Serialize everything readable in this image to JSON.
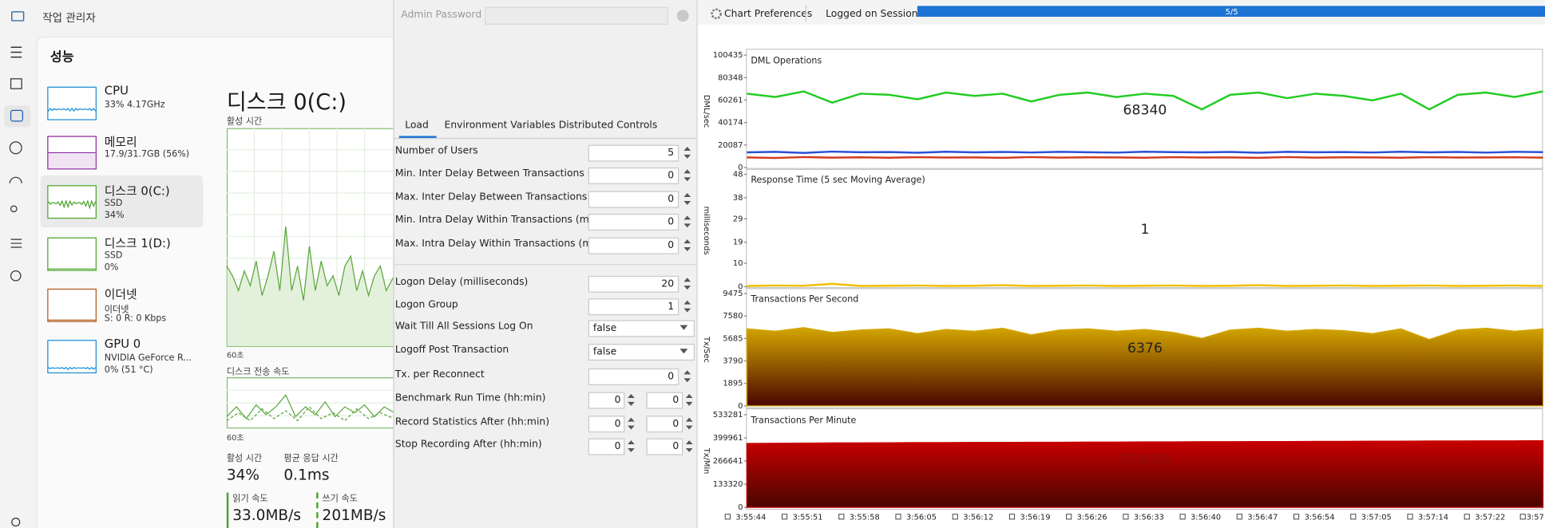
{
  "task_manager": {
    "title": "작업 관리자",
    "section": "성능",
    "devices": [
      {
        "name": "CPU",
        "lines": [
          "33% 4.17GHz"
        ]
      },
      {
        "name": "메모리",
        "lines": [
          "17.9/31.7GB (56%)"
        ]
      },
      {
        "name": "디스크 0(C:)",
        "lines": [
          "SSD",
          "34%"
        ]
      },
      {
        "name": "디스크 1(D:)",
        "lines": [
          "SSD",
          "0%"
        ]
      },
      {
        "name": "이더넷",
        "lines": [
          "이더넷",
          "S: 0 R: 0 Kbps"
        ]
      },
      {
        "name": "GPU 0",
        "lines": [
          "NVIDIA GeForce R...",
          "0% (51 °C)"
        ]
      }
    ],
    "detail": {
      "title": "디스크 0(C:)",
      "graph_label": "활성 시간",
      "graph_span": "60초",
      "transfer_label": "디스크 전송 속도",
      "transfer_span": "60초",
      "stats": [
        {
          "label": "활성 시간",
          "value": "34%"
        },
        {
          "label": "평균 응답 시간",
          "value": "0.1ms"
        },
        {
          "label": "읽기 속도",
          "value": "33.0MB/s"
        },
        {
          "label": "쓰기 속도",
          "value": "201MB/s"
        }
      ]
    }
  },
  "settings": {
    "admin_password": "Admin Password",
    "tabs": [
      "Load",
      "Environment Variables",
      "Distributed Controls"
    ],
    "fields": [
      {
        "label": "Number of Users",
        "value": 5
      },
      {
        "label": "Min. Inter Delay Between Transactions (ms)",
        "value": 0
      },
      {
        "label": "Max. Inter Delay Between Transactions (ms)",
        "value": 0
      },
      {
        "label": "Min. Intra Delay Within Transactions (ms)",
        "value": 0
      },
      {
        "label": "Max. Intra Delay Within Transactions (ms)",
        "value": 0
      },
      {
        "label": "Logon Delay (milliseconds)",
        "value": 20
      },
      {
        "label": "Logon Group",
        "value": 1
      },
      {
        "label": "Wait Till All Sessions Log On",
        "value": "false"
      },
      {
        "label": "Logoff Post Transaction",
        "value": "false"
      },
      {
        "label": "Tx. per Reconnect",
        "value": 0
      },
      {
        "label": "Benchmark Run Time (hh:min)",
        "values": [
          0,
          0
        ]
      },
      {
        "label": "Record Statistics After (hh:min)",
        "values": [
          0,
          0
        ]
      },
      {
        "label": "Stop Recording After (hh:min)",
        "values": [
          0,
          0
        ]
      }
    ]
  },
  "monitor": {
    "chart_preferences": "Chart Preferences",
    "sessions_label": "Logged on Sessions",
    "sessions_progress": "5/5"
  },
  "chart_data": [
    {
      "type": "line",
      "title": "DML Operations",
      "ylabel": "DML/sec",
      "annotation": 68340,
      "ylim": [
        0,
        100435
      ],
      "yticks": [
        0,
        20087,
        40174,
        60261,
        80348,
        100435
      ],
      "series": [
        {
          "color": "#22cc22",
          "values": [
            66000,
            63000,
            68000,
            58000,
            66000,
            65000,
            61000,
            67000,
            64000,
            66000,
            59000,
            65000,
            67000,
            63000,
            66000,
            64000,
            52000,
            65000,
            67000,
            62000,
            66000,
            64000,
            60000,
            66000,
            52000,
            65000,
            67000,
            63000,
            68000
          ]
        },
        {
          "color": "#2b4fd6",
          "values": [
            13500,
            14000,
            13000,
            14200,
            13600,
            13800,
            13200,
            14100,
            13500,
            13900,
            13400,
            14000,
            13600,
            13300,
            14100,
            13700,
            13500,
            13900,
            13200,
            14000,
            13600,
            13800,
            13400,
            14100,
            13500,
            13900,
            13300,
            14000,
            13700
          ]
        },
        {
          "color": "#d23a1e",
          "values": [
            9000,
            8500,
            9300,
            8800,
            9100,
            8700,
            9200,
            8900,
            9000,
            8600,
            9300,
            8800,
            9100,
            9000,
            8700,
            9200,
            8900,
            9000,
            8600,
            9300,
            8800,
            9100,
            9000,
            8700,
            9200,
            8900,
            9000,
            9100,
            8800
          ]
        }
      ]
    },
    {
      "type": "line",
      "title": "Response Time (5 sec Moving Average)",
      "ylabel": "milliseconds",
      "annotation": 1,
      "ylim": [
        0,
        48
      ],
      "yticks": [
        0,
        10,
        19,
        29,
        38,
        48
      ],
      "series": [
        {
          "color": "#f0c000",
          "values": [
            0.3,
            0.5,
            0.4,
            1.2,
            0.3,
            0.4,
            0.5,
            0.3,
            0.4,
            0.6,
            0.3,
            0.4,
            0.5,
            0.3,
            0.4,
            0.5,
            0.3,
            0.4,
            0.6,
            0.3,
            0.4,
            0.5,
            0.3,
            0.4,
            0.5,
            0.3,
            0.4,
            0.5,
            0.3
          ]
        }
      ]
    },
    {
      "type": "area",
      "title": "Transactions Per Second",
      "ylabel": "Tx/Sec",
      "annotation": 6376,
      "ylim": [
        0,
        9475
      ],
      "yticks": [
        0,
        1895,
        3790,
        5685,
        7580,
        9475
      ],
      "series": [
        {
          "color": "#d4a600",
          "values": [
            6500,
            6300,
            6600,
            6200,
            6400,
            6500,
            6100,
            6450,
            6300,
            6550,
            6000,
            6400,
            6500,
            6300,
            6450,
            6200,
            5700,
            6400,
            6550,
            6300,
            6450,
            6350,
            6100,
            6500,
            5600,
            6400,
            6550,
            6300,
            6500
          ]
        }
      ]
    },
    {
      "type": "area",
      "title": "Transactions Per Minute",
      "ylabel": "Tx/Min",
      "annotation": 374600,
      "ylim": [
        0,
        533281
      ],
      "yticks": [
        0,
        133320,
        266641,
        399961,
        533281
      ],
      "categories": [
        "3:55:44",
        null,
        "3:55:51",
        null,
        "3:55:58",
        null,
        "3:56:05",
        null,
        "3:56:12",
        null,
        "3:56:19",
        null,
        "3:56:26",
        null,
        "3:56:33",
        null,
        "3:56:40",
        null,
        "3:56:47",
        null,
        "3:56:54",
        null,
        "3:57:05",
        null,
        "3:57:14",
        null,
        "3:57:22",
        null,
        "3:57"
      ],
      "series": [
        {
          "color": "#c80000",
          "values": [
            368000,
            369000,
            370000,
            371000,
            371000,
            372000,
            373000,
            373000,
            374000,
            374000,
            375000,
            375000,
            376000,
            376000,
            377000,
            377000,
            378000,
            378000,
            379000,
            379000,
            380000,
            380000,
            381000,
            381000,
            382000,
            382000,
            383000,
            383000,
            384000
          ]
        }
      ]
    }
  ]
}
